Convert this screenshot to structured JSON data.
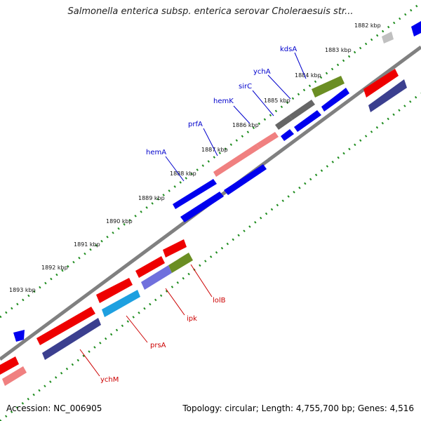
{
  "title": "Salmonella enterica subsp. enterica serovar Choleraesuis str...",
  "footer": {
    "accession": "Accession: NC_006905",
    "summary": "Topology: circular; Length: 4,755,700 bp; Genes: 4,516"
  },
  "colors": {
    "backbone": "#808080",
    "tick_dots": "#1e8c1e",
    "gene_blue": "#0000ee",
    "gene_red": "#ee0000",
    "gene_pink": "#f08080",
    "gene_gray": "#666666",
    "gene_olive": "#6b8e23",
    "gene_navy": "#3b3f8f",
    "gene_purple": "#7070dd",
    "gene_cyan": "#1ea0e0",
    "label_blue": "#0000cc",
    "label_red": "#cc0000"
  },
  "scale_labels": [
    "1882 kbp",
    "1883 kbp",
    "1884 kbp",
    "1885 kbp",
    "1886 kbp",
    "1887 kbp",
    "1888 kbp",
    "1889 kbp",
    "1890 kbp",
    "1891 kbp",
    "1892 kbp",
    "1893 kbp"
  ],
  "gene_labels_forward": [
    "kdsA",
    "ychA",
    "sirC",
    "hemK",
    "prfA",
    "hemA"
  ],
  "gene_labels_reverse": [
    "lolB",
    "ipk",
    "prsA",
    "ychM"
  ]
}
